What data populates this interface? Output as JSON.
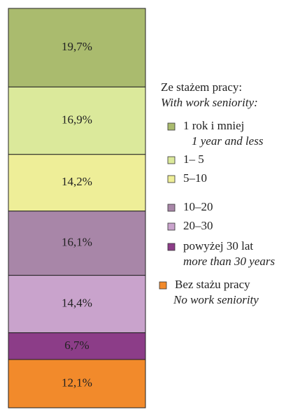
{
  "chart_data": {
    "type": "stacked_bar",
    "legend_title": "Ze stażem pracy:",
    "legend_subtitle": "With work seniority:",
    "series": [
      {
        "name": "1 rok i mniej",
        "subtitle": "1 year and less",
        "color": "#aabb6e",
        "values": [
          19.7
        ],
        "value_labels": [
          "19,7%"
        ]
      },
      {
        "name": "1– 5",
        "color": "#dbe99b",
        "values": [
          16.9
        ],
        "value_labels": [
          "16,9%"
        ]
      },
      {
        "name": "5–10",
        "color": "#eeee98",
        "values": [
          14.2
        ],
        "value_labels": [
          "14,2%"
        ]
      },
      {
        "name": "10–20",
        "color": "#a886a8",
        "values": [
          16.1
        ],
        "value_labels": [
          "16,1%"
        ]
      },
      {
        "name": "20–30",
        "color": "#c9a3cc",
        "values": [
          14.4
        ],
        "value_labels": [
          "14,4%"
        ]
      },
      {
        "name": "powyżej 30 lat",
        "subtitle": "more than 30 years",
        "color": "#8c3d88",
        "values": [
          6.7
        ],
        "value_labels": [
          "6,7%"
        ]
      },
      {
        "name": "Bez stażu pracy",
        "subtitle": "No work seniority",
        "color": "#f28a2b",
        "values": [
          12.1
        ],
        "value_labels": [
          "12,1%"
        ]
      }
    ]
  }
}
